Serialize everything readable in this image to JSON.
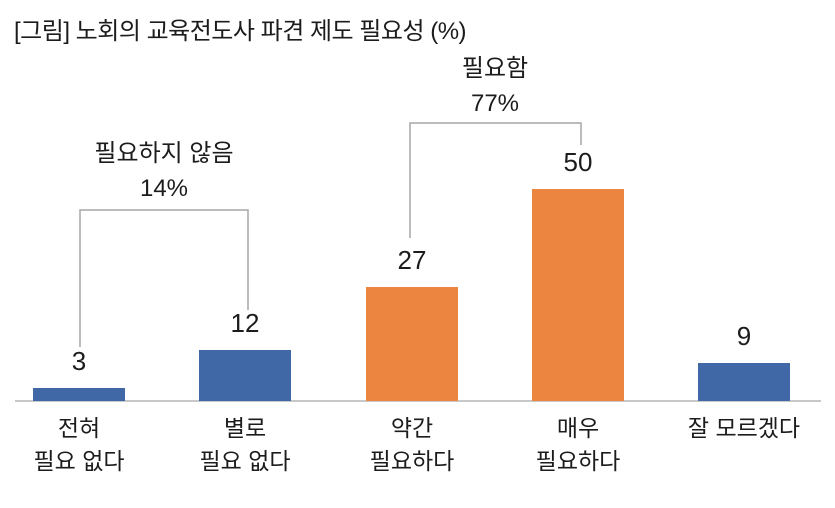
{
  "title": "[그림] 노회의 교육전도사 파견 제도 필요성 (%)",
  "chart_data": {
    "type": "bar",
    "title": "[그림] 노회의 교육전도사 파견 제도 필요성 (%)",
    "categories": [
      "전혀 필요 없다",
      "별로 필요 없다",
      "약간 필요하다",
      "매우 필요하다",
      "잘 모르겠다"
    ],
    "category_label_lines": [
      [
        "전혀",
        "필요 없다"
      ],
      [
        "별로",
        "필요 없다"
      ],
      [
        "약간",
        "필요하다"
      ],
      [
        "매우",
        "필요하다"
      ],
      [
        "잘 모르겠다"
      ]
    ],
    "values": [
      3,
      12,
      27,
      50,
      9
    ],
    "unit": "%",
    "bar_colors": [
      "#4068A6",
      "#4068A6",
      "#EC8540",
      "#EC8540",
      "#4068A6"
    ],
    "xlabel": "",
    "ylabel": "",
    "ylim": [
      0,
      55
    ],
    "grid": false,
    "legend": "none",
    "value_labels_shown": true,
    "annotations": [
      {
        "label": "필요하지 않음",
        "value": "14%",
        "span_categories": [
          "전혀 필요 없다",
          "별로 필요 없다"
        ]
      },
      {
        "label": "필요함",
        "value": "77%",
        "span_categories": [
          "약간 필요하다",
          "매우 필요하다"
        ]
      }
    ]
  },
  "colors": {
    "blue": "#4068A6",
    "orange": "#EC8540",
    "axis_line": "#C8C8C8",
    "bracket_line": "#A6A6A6",
    "text": "#1C1C1C"
  }
}
